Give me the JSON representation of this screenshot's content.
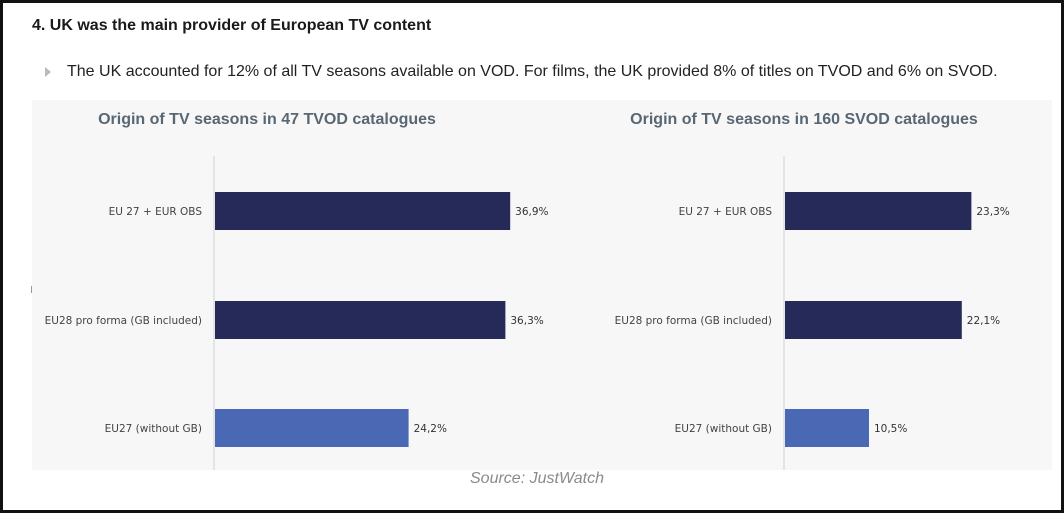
{
  "heading": "4. UK was the main provider of European TV content",
  "bullet": "The UK accounted for 12% of all TV seasons available on VOD. For films, the UK provided 8% of titles on TVOD and 6% on SVOD.",
  "source": "Source: JustWatch",
  "colors": {
    "dark_bar": "#252a58",
    "light_bar": "#4a68b3",
    "axis": "#d0d0d0"
  },
  "chart_data": [
    {
      "type": "bar",
      "orientation": "horizontal",
      "title": "Origin of TV seasons in 47 TVOD catalogues",
      "categories": [
        "EU 27 + EUR OBS",
        "EU28 pro forma (GB included)",
        "EU27 (without GB)"
      ],
      "values": [
        36.9,
        36.3,
        24.2
      ],
      "value_labels": [
        "36,9%",
        "36,3%",
        "24,2%"
      ],
      "xlim": [
        0,
        46
      ],
      "grid": false
    },
    {
      "type": "bar",
      "orientation": "horizontal",
      "title": "Origin of TV seasons in 160 SVOD catalogues",
      "categories": [
        "EU 27 + EUR OBS",
        "EU28 pro forma (GB included)",
        "EU27 (without GB)"
      ],
      "values": [
        23.3,
        22.1,
        10.5
      ],
      "value_labels": [
        "23,3%",
        "22,1%",
        "10,5%"
      ],
      "xlim": [
        0,
        46
      ],
      "grid": false
    }
  ]
}
